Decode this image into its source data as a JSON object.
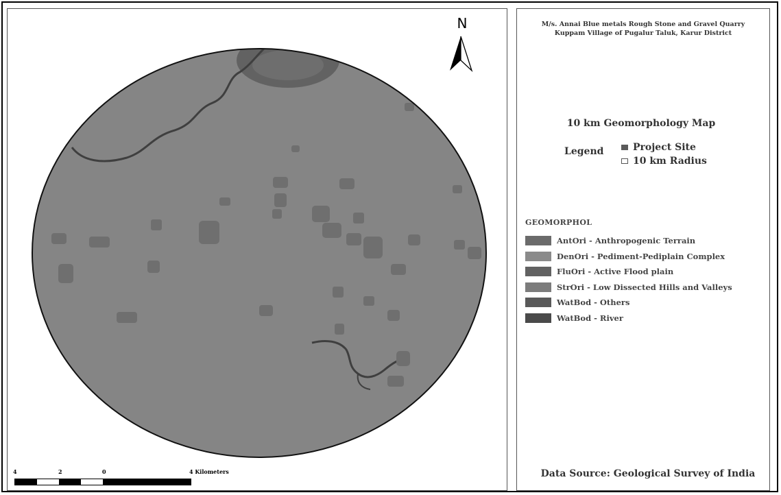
{
  "north_arrow": {
    "label": "N"
  },
  "title_block": {
    "line1": "M/s. Annai Blue metals Rough Stone and Gravel Quarry",
    "line2": "Kuppam Village of Pugalur Taluk, Karur District"
  },
  "map_title": "10 km Geomorphology  Map",
  "legend": {
    "label": "Legend",
    "entries": [
      {
        "label": "Project Site",
        "symbol": "filled-square",
        "color": "#5a5a5a"
      },
      {
        "label": "10 km Radius",
        "symbol": "hollow-square",
        "color": "#ffffff"
      }
    ]
  },
  "geomorphology": {
    "heading": "GEOMORPHOL",
    "classes": [
      {
        "label": "AntOri - Anthropogenic Terrain",
        "color": "#6b6b6b"
      },
      {
        "label": "DenOri - Pediment-Pediplain Complex",
        "color": "#8a8a8a"
      },
      {
        "label": "FluOri - Active Flood plain",
        "color": "#626262"
      },
      {
        "label": "StrOri - Low Dissected Hills and Valleys",
        "color": "#7c7c7c"
      },
      {
        "label": "WatBod - Others",
        "color": "#595959"
      },
      {
        "label": "WatBod - River",
        "color": "#4a4a4a"
      }
    ]
  },
  "scale_bar": {
    "ticks": [
      "4",
      "2",
      "0",
      "4 Kilometers"
    ]
  },
  "data_source": "Data Source: Geological Survey of India",
  "colors": {
    "base_terrain": "#858585",
    "hills": "#6f6f6f",
    "flood_plain": "#626262",
    "river": "#3f3f3f",
    "outline": "#111111"
  }
}
